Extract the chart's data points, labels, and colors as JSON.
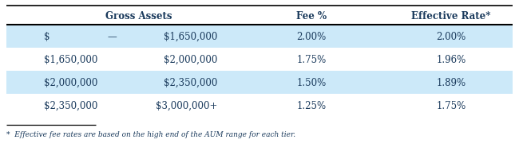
{
  "col1": [
    "$",
    "$1,650,000",
    "$2,000,000",
    "$2,350,000"
  ],
  "col_dash": [
    "—",
    "",
    "",
    ""
  ],
  "col2": [
    "$1,650,000",
    "$2,000,000",
    "$2,350,000",
    "$3,000,000+"
  ],
  "col3": [
    "2.00%",
    "1.75%",
    "1.50%",
    "1.25%"
  ],
  "col4": [
    "2.00%",
    "1.96%",
    "1.89%",
    "1.75%"
  ],
  "row_colors": [
    "#cce9f9",
    "#ffffff",
    "#cce9f9",
    "#ffffff"
  ],
  "text_color": "#1a3a5c",
  "footnote": "*  Effective fee rates are based on the high end of the AUM range for each tier.",
  "background": "#ffffff",
  "header_top_line_color": "#000000",
  "header_bot_line_color": "#000000"
}
